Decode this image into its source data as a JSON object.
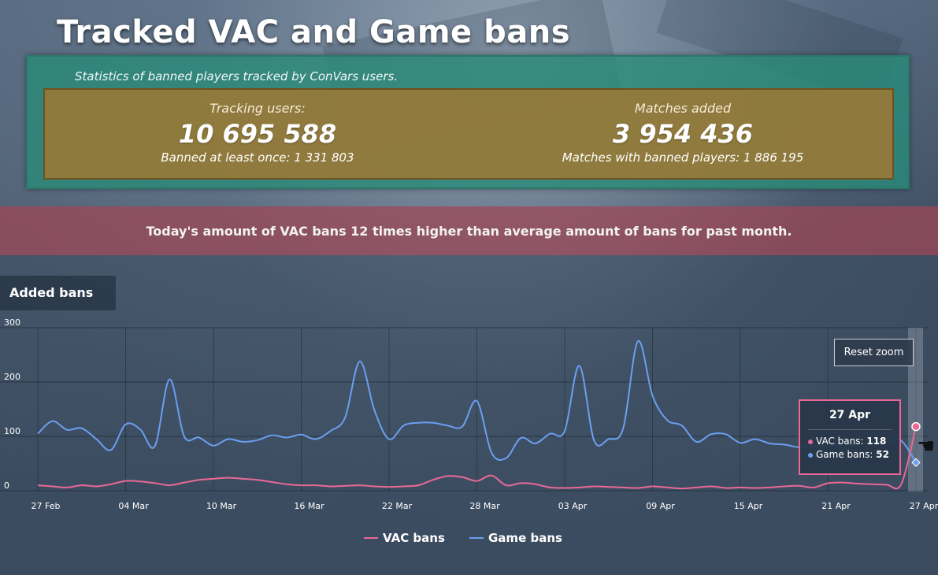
{
  "page": {
    "title": "Tracked VAC and Game bans"
  },
  "stats": {
    "subtitle": "Statistics of banned players tracked by ConVars users.",
    "tracking_label": "Tracking users:",
    "tracking_value": "10 695 588",
    "banned_once": "Banned at least once: 1 331 803",
    "matches_label": "Matches added",
    "matches_value": "3 954 436",
    "matches_banned": "Matches with banned players: 1 886 195"
  },
  "alert": {
    "text": "Today's amount of VAC bans 12 times higher than average amount of bans for past month."
  },
  "chart_section": {
    "tab_label": "Added bans",
    "reset_zoom_label": "Reset zoom"
  },
  "tooltip": {
    "date": "27 Apr",
    "vac_label": "VAC bans: ",
    "vac_value": "118",
    "game_label": "Game bans: ",
    "game_value": "52"
  },
  "colors": {
    "vac": "#e86996",
    "game": "#6a9ff0"
  },
  "chart_data": {
    "type": "line",
    "title": "",
    "xlabel": "",
    "ylabel": "",
    "ylim": [
      0,
      300
    ],
    "yticks": [
      0,
      100,
      200,
      300
    ],
    "x_tick_labels": [
      "27 Feb",
      "04 Mar",
      "10 Mar",
      "16 Mar",
      "22 Mar",
      "28 Mar",
      "03 Apr",
      "09 Apr",
      "15 Apr",
      "21 Apr",
      "27 Apr"
    ],
    "x": [
      "27 Feb",
      "28 Feb",
      "29 Feb",
      "01 Mar",
      "02 Mar",
      "03 Mar",
      "04 Mar",
      "05 Mar",
      "06 Mar",
      "07 Mar",
      "08 Mar",
      "09 Mar",
      "10 Mar",
      "11 Mar",
      "12 Mar",
      "13 Mar",
      "14 Mar",
      "15 Mar",
      "16 Mar",
      "17 Mar",
      "18 Mar",
      "19 Mar",
      "20 Mar",
      "21 Mar",
      "22 Mar",
      "23 Mar",
      "24 Mar",
      "25 Mar",
      "26 Mar",
      "27 Mar",
      "28 Mar",
      "29 Mar",
      "30 Mar",
      "31 Mar",
      "01 Apr",
      "02 Apr",
      "03 Apr",
      "04 Apr",
      "05 Apr",
      "06 Apr",
      "07 Apr",
      "08 Apr",
      "09 Apr",
      "10 Apr",
      "11 Apr",
      "12 Apr",
      "13 Apr",
      "14 Apr",
      "15 Apr",
      "16 Apr",
      "17 Apr",
      "18 Apr",
      "19 Apr",
      "20 Apr",
      "21 Apr",
      "22 Apr",
      "23 Apr",
      "24 Apr",
      "25 Apr",
      "26 Apr",
      "27 Apr"
    ],
    "series": [
      {
        "name": "VAC bans",
        "values": [
          10,
          8,
          6,
          10,
          8,
          12,
          18,
          17,
          14,
          10,
          15,
          20,
          22,
          24,
          22,
          20,
          16,
          12,
          10,
          10,
          8,
          9,
          10,
          8,
          7,
          8,
          10,
          20,
          27,
          25,
          18,
          28,
          10,
          14,
          12,
          6,
          5,
          6,
          8,
          7,
          6,
          5,
          8,
          6,
          4,
          6,
          8,
          5,
          6,
          5,
          6,
          8,
          9,
          6,
          14,
          15,
          13,
          12,
          11,
          12,
          118
        ]
      },
      {
        "name": "Game bans",
        "values": [
          105,
          128,
          112,
          115,
          95,
          75,
          122,
          113,
          82,
          205,
          100,
          98,
          83,
          95,
          90,
          93,
          102,
          98,
          103,
          95,
          110,
          135,
          238,
          148,
          95,
          120,
          125,
          125,
          120,
          118,
          165,
          70,
          60,
          97,
          87,
          105,
          110,
          230,
          93,
          95,
          115,
          275,
          175,
          130,
          120,
          90,
          104,
          104,
          88,
          95,
          87,
          85,
          80,
          82,
          85,
          84,
          86,
          88,
          90,
          92,
          52
        ]
      }
    ],
    "grid": true,
    "legend": "bottom-center"
  }
}
